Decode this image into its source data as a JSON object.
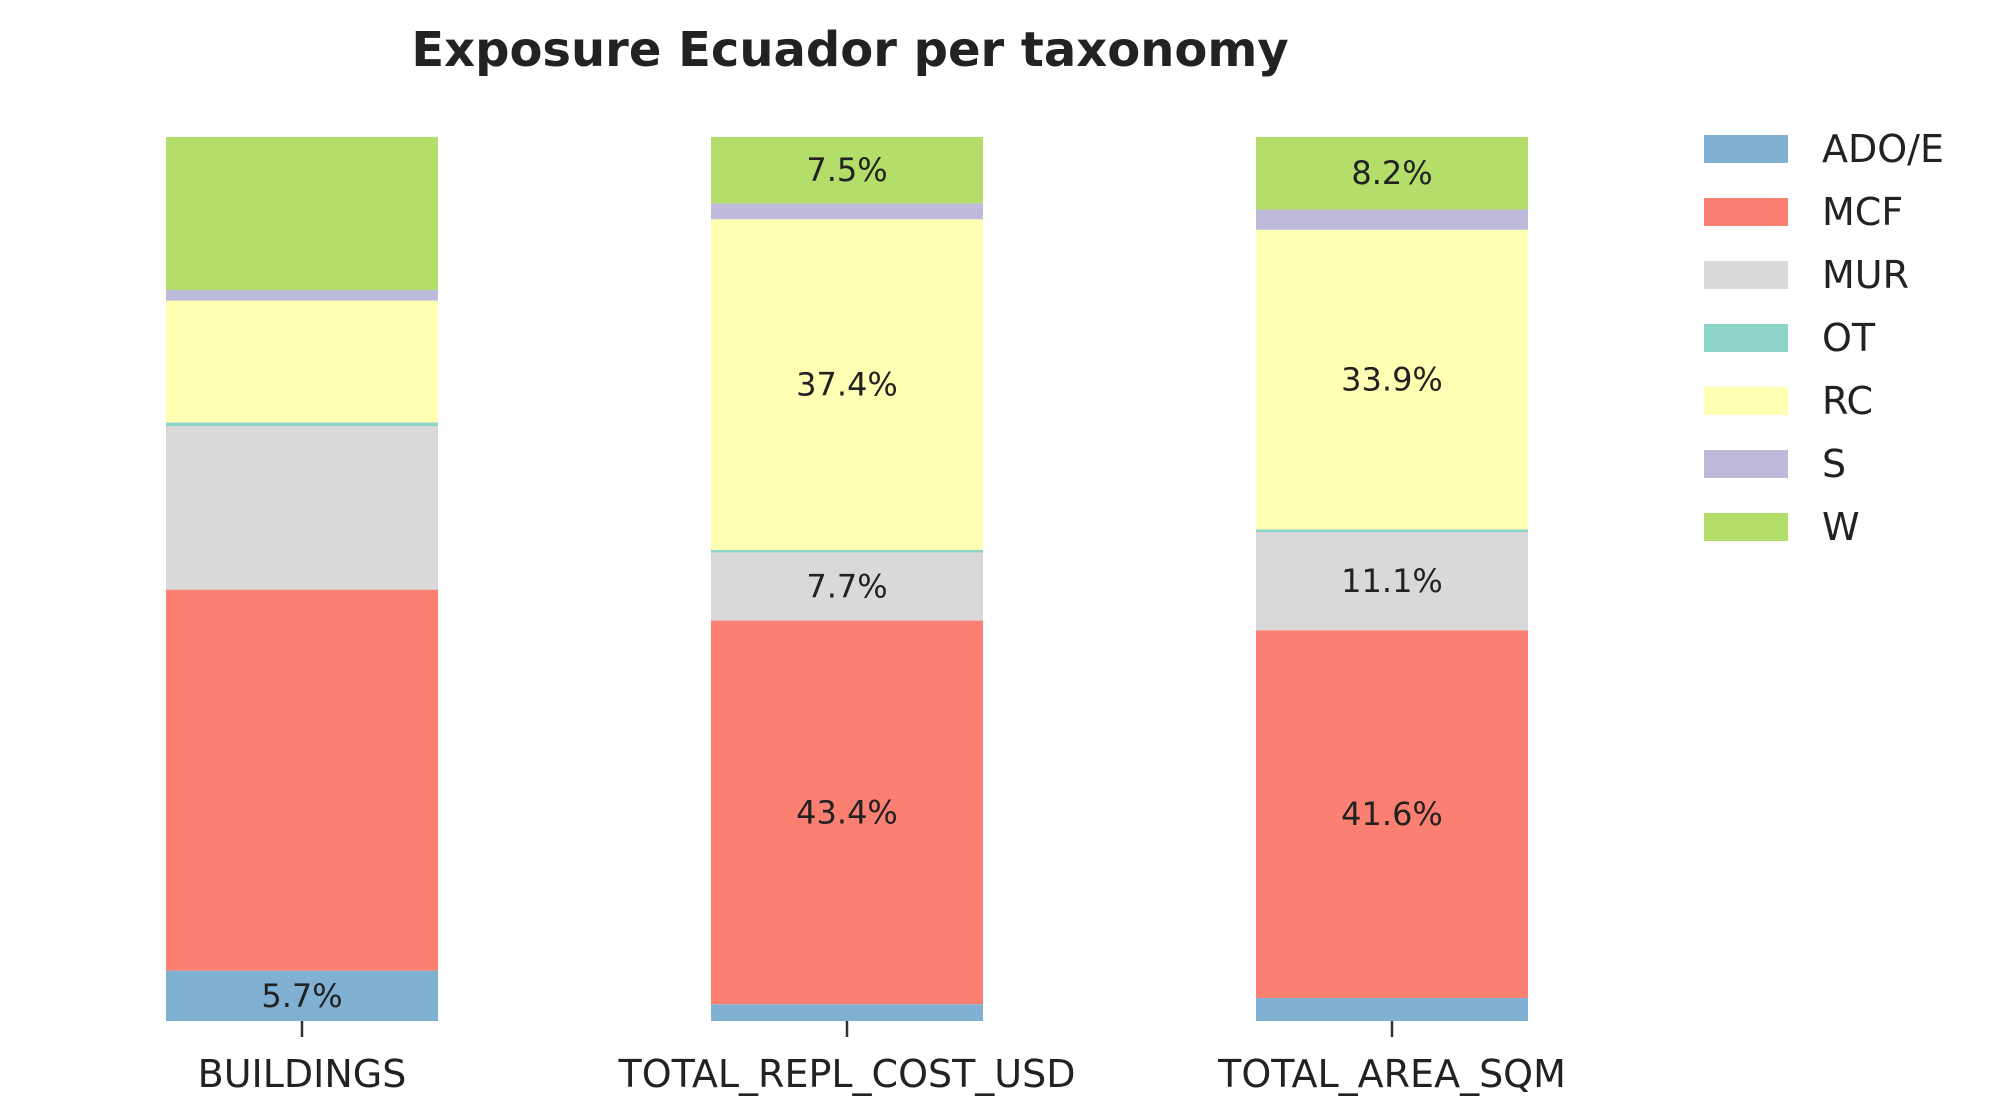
{
  "chart_data": {
    "type": "bar",
    "stacked": true,
    "normalized_percent": true,
    "title": "Exposure Ecuador per taxonomy",
    "xlabel": "",
    "ylabel": "",
    "ylim": [
      0,
      100
    ],
    "grid": false,
    "legend_position": "top-right outside",
    "categories": [
      "BUILDINGS",
      "TOTAL_REPL_COST_USD",
      "TOTAL_AREA_SQM"
    ],
    "series": [
      {
        "name": "ADO/E",
        "color": "#80b1d3",
        "values": [
          5.7,
          1.9,
          2.6
        ]
      },
      {
        "name": "MCF",
        "color": "#fb8072",
        "values": [
          43.1,
          43.4,
          41.6
        ]
      },
      {
        "name": "MUR",
        "color": "#d9d9d9",
        "values": [
          18.5,
          7.7,
          11.1
        ]
      },
      {
        "name": "OT",
        "color": "#8dd3c7",
        "values": [
          0.4,
          0.3,
          0.3
        ]
      },
      {
        "name": "RC",
        "color": "#ffffb3",
        "values": [
          13.8,
          37.4,
          33.9
        ]
      },
      {
        "name": "S",
        "color": "#bebada",
        "values": [
          1.2,
          1.8,
          2.3
        ]
      },
      {
        "name": "W",
        "color": "#b3de69",
        "values": [
          17.3,
          7.5,
          8.2
        ]
      }
    ],
    "data_labels": [
      [
        "5.7%",
        "",
        "",
        "",
        "",
        "",
        ""
      ],
      [
        "",
        "43.4%",
        "7.7%",
        "",
        "37.4%",
        "",
        "7.5%"
      ],
      [
        "",
        "41.6%",
        "11.1%",
        "",
        "33.9%",
        "",
        "8.2%"
      ]
    ]
  }
}
